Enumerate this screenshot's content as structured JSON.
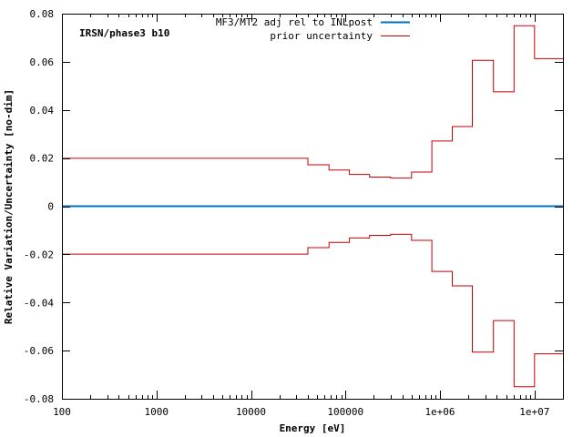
{
  "chart_data": {
    "type": "line",
    "title": "IRSN/phase3 b10",
    "xlabel": "Energy [eV]",
    "ylabel": "Relative Variation/Uncertainty [no-dim]",
    "xscale": "log",
    "xlim": [
      100,
      20000000
    ],
    "ylim": [
      -0.08,
      0.08
    ],
    "grid": false,
    "legend_position": "top-right",
    "x_ticks": [
      {
        "value": 100,
        "label": "100"
      },
      {
        "value": 1000,
        "label": "1000"
      },
      {
        "value": 10000,
        "label": "10000"
      },
      {
        "value": 100000,
        "label": "100000"
      },
      {
        "value": 1000000,
        "label": "1e+06"
      },
      {
        "value": 10000000,
        "label": "1e+07"
      }
    ],
    "y_ticks": [
      {
        "value": 0.08,
        "label": "0.08"
      },
      {
        "value": 0.06,
        "label": "0.06"
      },
      {
        "value": 0.04,
        "label": "0.04"
      },
      {
        "value": 0.02,
        "label": "0.02"
      },
      {
        "value": 0,
        "label": "0"
      },
      {
        "value": -0.02,
        "label": "-0.02"
      },
      {
        "value": -0.04,
        "label": "-0.04"
      },
      {
        "value": -0.06,
        "label": "-0.06"
      },
      {
        "value": -0.08,
        "label": "-0.08"
      }
    ],
    "series": [
      {
        "name": "MF3/MT2 adj rel to INLpost",
        "color": "#0072bd",
        "style": "line",
        "x": [
          100,
          20000000
        ],
        "y": [
          0,
          0
        ]
      },
      {
        "name": "prior uncertainty",
        "color": "#cc0000",
        "style": "step",
        "bin_edges": [
          100,
          40000,
          67000,
          110000,
          180000,
          300000,
          500000,
          820000,
          1350000,
          2200000,
          3680000,
          6070000,
          10000000,
          20000000
        ],
        "values": [
          0.0199,
          0.0172,
          0.015,
          0.0132,
          0.0121,
          0.0117,
          0.0142,
          0.0271,
          0.0331,
          0.0606,
          0.0475,
          0.075,
          0.0613
        ],
        "mirror_negative": true
      }
    ]
  }
}
